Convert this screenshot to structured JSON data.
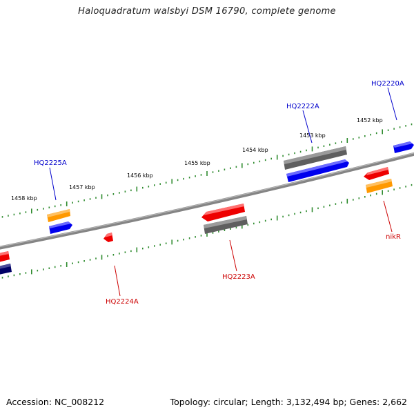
{
  "title": "Haloquadratum walsbyi DSM 16790, complete genome",
  "footer": {
    "accession": "Accession: NC_008212",
    "summary": "Topology: circular; Length: 3,132,494 bp; Genes: 2,662"
  },
  "colors": {
    "backbone": "#808080",
    "tick": "#2e8b2e",
    "forward_label": "#0000cc",
    "reverse_label": "#cc0000",
    "red_feature": "#ee0000",
    "blue_feature": "#0000ee",
    "gray_feature": "#666666",
    "orange_feature": "#ff9900",
    "navy_feature": "#000066"
  },
  "tick_labels": [
    "1452 kbp",
    "1453 kbp",
    "1454 kbp",
    "1455 kbp",
    "1456 kbp",
    "1457 kbp",
    "1458 kbp"
  ],
  "forward_labels": [
    "HQ2220A",
    "HQ2222A",
    "HQ2225A"
  ],
  "reverse_labels": [
    "nikR",
    "HQ2223A",
    "HQ2224A"
  ]
}
